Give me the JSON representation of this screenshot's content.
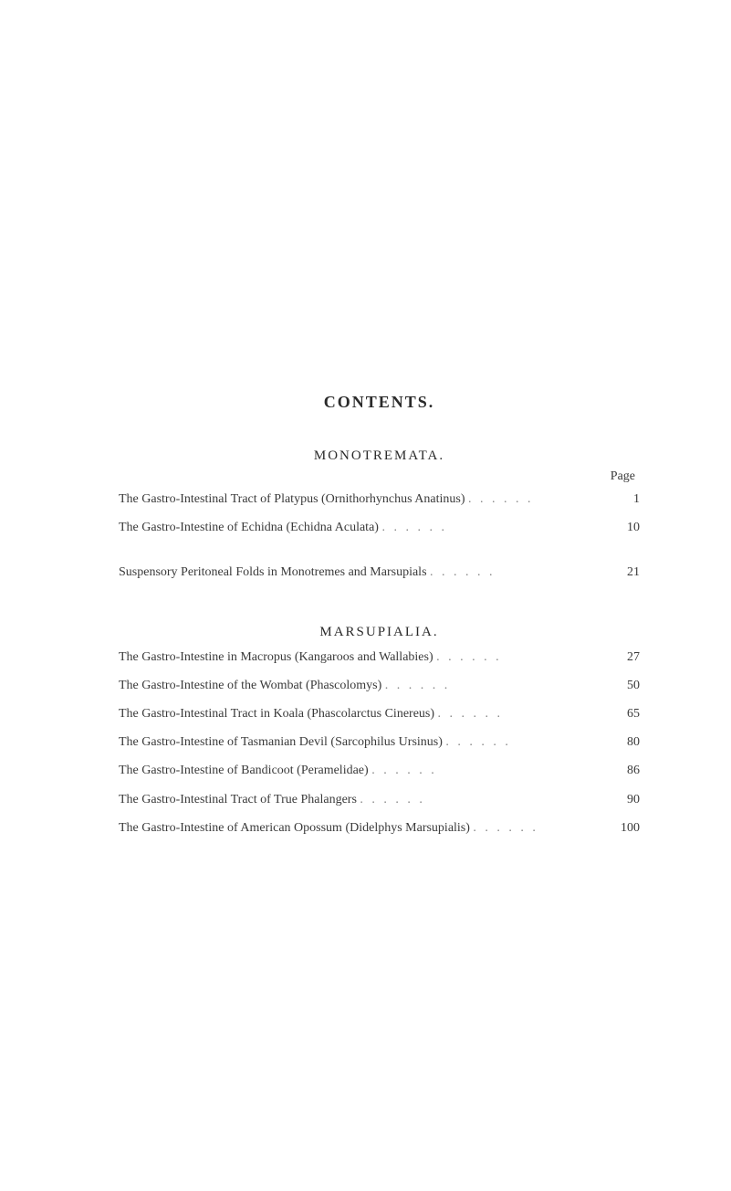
{
  "mainTitle": "CONTENTS.",
  "sections": [
    {
      "title": "MONOTREMATA.",
      "pageLabel": "Page",
      "entries": [
        {
          "text": "The Gastro-Intestinal Tract of Platypus (Ornithorhynchus Anatinus)",
          "page": "1",
          "spacedAfter": false
        },
        {
          "text": "The Gastro-Intestine of Echidna (Echidna Aculata)",
          "page": "10",
          "spacedAfter": true
        },
        {
          "text": "Suspensory Peritoneal Folds in Monotremes and Marsupials",
          "page": "21",
          "spacedAfter": false
        }
      ]
    },
    {
      "title": "MARSUPIALIA.",
      "pageLabel": "",
      "entries": [
        {
          "text": "The Gastro-Intestine in Macropus (Kangaroos and Wallabies)",
          "page": "27",
          "spacedAfter": false
        },
        {
          "text": "The Gastro-Intestine of the Wombat (Phascolomys)",
          "page": "50",
          "spacedAfter": false
        },
        {
          "text": "The Gastro-Intestinal Tract in Koala (Phascolarctus Cinereus)",
          "page": "65",
          "spacedAfter": false
        },
        {
          "text": "The Gastro-Intestine of Tasmanian Devil (Sarcophilus Ursinus)",
          "page": "80",
          "spacedAfter": false
        },
        {
          "text": "The Gastro-Intestine of Bandicoot (Peramelidae)",
          "page": "86",
          "spacedAfter": false
        },
        {
          "text": "The Gastro-Intestinal Tract of True Phalangers",
          "page": "90",
          "spacedAfter": false
        },
        {
          "text": "The Gastro-Intestine of American Opossum (Didelphys Marsupialis)",
          "page": "100",
          "spacedAfter": false
        }
      ]
    }
  ]
}
